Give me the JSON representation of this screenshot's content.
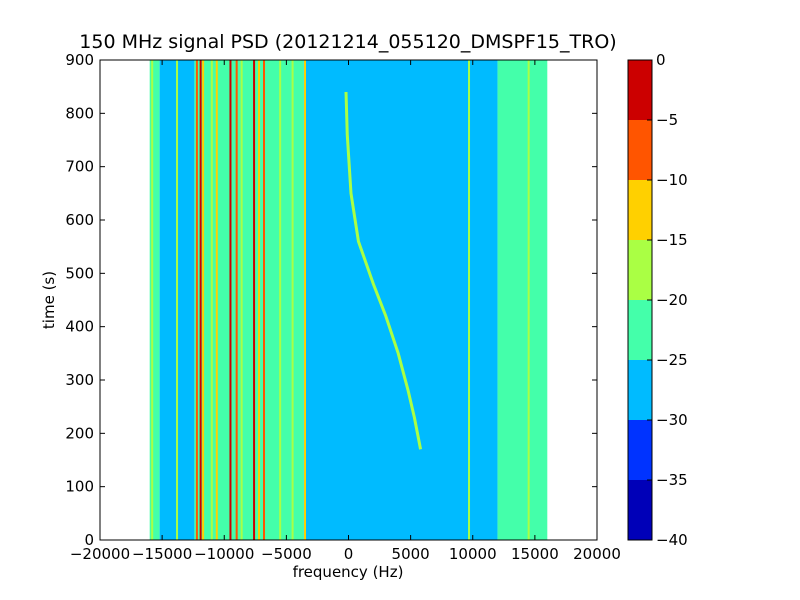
{
  "chart_data": {
    "type": "heatmap",
    "title": "150 MHz signal PSD (20121214_055120_DMSPF15_TRO)",
    "xlabel": "frequency (Hz)",
    "ylabel": "time (s)",
    "xlim": [
      -20000,
      20000
    ],
    "ylim": [
      0,
      900
    ],
    "x_ticks": [
      -20000,
      -15000,
      -10000,
      -5000,
      0,
      5000,
      10000,
      15000,
      20000
    ],
    "x_tick_labels": [
      "−20000",
      "−15000",
      "−10000",
      "−5000",
      "0",
      "5000",
      "10000",
      "15000",
      "20000"
    ],
    "y_ticks": [
      0,
      100,
      200,
      300,
      400,
      500,
      600,
      700,
      800,
      900
    ],
    "y_tick_labels": [
      "0",
      "100",
      "200",
      "300",
      "400",
      "500",
      "600",
      "700",
      "800",
      "900"
    ],
    "data_extent": {
      "freq_min": -16000,
      "freq_max": 16000,
      "time_min": 0,
      "time_max": 900
    },
    "colorbar": {
      "levels": [
        -40,
        -35,
        -30,
        -25,
        -20,
        -15,
        -10,
        -5,
        0
      ],
      "tick_labels": [
        "−40",
        "−35",
        "−30",
        "−25",
        "−20",
        "−15",
        "−10",
        "−5",
        "0"
      ],
      "colors": [
        "#0000b8",
        "#0033ff",
        "#00bbff",
        "#44ffaa",
        "#aaff44",
        "#ffd000",
        "#ff5500",
        "#cc0000"
      ]
    },
    "background_bands": [
      {
        "from": -16000,
        "to": -15200,
        "level": -22
      },
      {
        "from": -15200,
        "to": -12400,
        "level": -27
      },
      {
        "from": -12400,
        "to": -3600,
        "level": -22
      },
      {
        "from": -3600,
        "to": 0,
        "level": -27
      },
      {
        "from": 0,
        "to": 12000,
        "level": -27
      },
      {
        "from": 12000,
        "to": 16000,
        "level": -22
      }
    ],
    "vertical_lines": [
      {
        "freq": -15800,
        "level": -17
      },
      {
        "freq": -13800,
        "level": -17
      },
      {
        "freq": -12200,
        "level": -7
      },
      {
        "freq": -11900,
        "level": -3
      },
      {
        "freq": -11700,
        "level": -12
      },
      {
        "freq": -11000,
        "level": -17
      },
      {
        "freq": -10600,
        "level": -12
      },
      {
        "freq": -9500,
        "level": -2
      },
      {
        "freq": -9000,
        "level": -7
      },
      {
        "freq": -8600,
        "level": -17
      },
      {
        "freq": -7600,
        "level": -2
      },
      {
        "freq": -7200,
        "level": -12
      },
      {
        "freq": -6800,
        "level": -7
      },
      {
        "freq": -5500,
        "level": -17
      },
      {
        "freq": -4500,
        "level": -17
      },
      {
        "freq": -3500,
        "level": -12
      },
      {
        "freq": 9700,
        "level": -17
      },
      {
        "freq": 14500,
        "level": -17
      }
    ],
    "doppler_trace": {
      "level": -17,
      "points": [
        [
          -200,
          840
        ],
        [
          -100,
          760
        ],
        [
          200,
          650
        ],
        [
          800,
          560
        ],
        [
          2000,
          480
        ],
        [
          3000,
          420
        ],
        [
          4000,
          350
        ],
        [
          4800,
          280
        ],
        [
          5300,
          230
        ],
        [
          5800,
          170
        ]
      ]
    }
  }
}
